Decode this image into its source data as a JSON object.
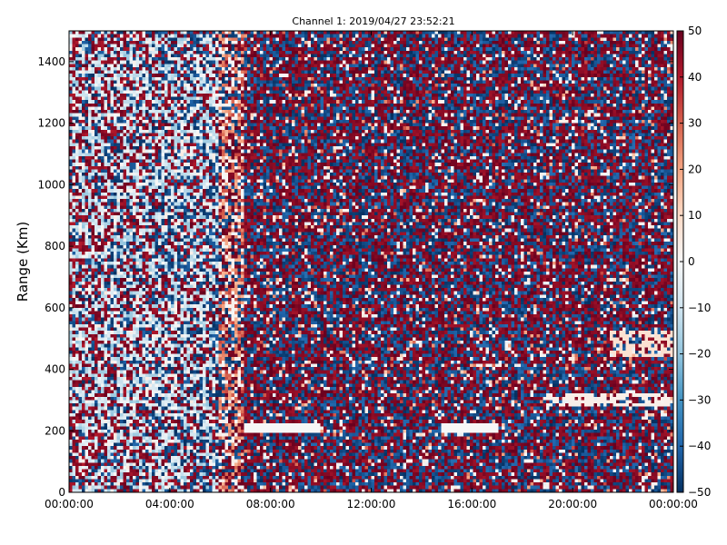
{
  "chart_data": {
    "type": "heatmap",
    "title": "Channel 1: 2019/04/27 23:52:21",
    "xlabel": "",
    "ylabel": "Range (Km)",
    "x_range": [
      "00:00:00",
      "24:00:00"
    ],
    "x_ticks": [
      "00:00:00",
      "04:00:00",
      "08:00:00",
      "12:00:00",
      "16:00:00",
      "20:00:00",
      "00:00:00"
    ],
    "x_tick_hours": [
      0,
      4,
      8,
      12,
      16,
      20,
      24
    ],
    "ylim": [
      0,
      1500
    ],
    "y_ticks": [
      0,
      200,
      400,
      600,
      800,
      1000,
      1200,
      1400
    ],
    "colorbar": {
      "range": [
        -50,
        50
      ],
      "ticks": [
        50,
        40,
        30,
        20,
        10,
        0,
        -10,
        -20,
        -30,
        -40,
        -50
      ],
      "colormap": "RdBu_r",
      "colors": [
        "#053061",
        "#2166ac",
        "#4393c3",
        "#92c5de",
        "#d1e5f0",
        "#f7f7f7",
        "#fddbc7",
        "#f4a582",
        "#d6604d",
        "#b2182b",
        "#67001f"
      ]
    },
    "grid": false
  }
}
